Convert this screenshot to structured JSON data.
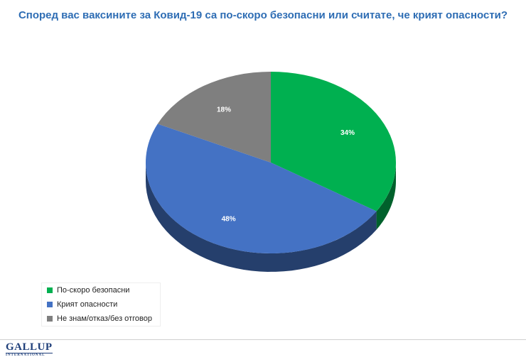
{
  "chart_data": {
    "type": "pie",
    "title": "Според вас ваксините за Ковид-19 са по-скоро безопасни или считате, че крият опасности?",
    "slices": [
      {
        "label": "По-скоро безопасни",
        "value": 34,
        "value_label": "34%",
        "color": "#00b050"
      },
      {
        "label": "Крият опасности",
        "value": 48,
        "value_label": "48%",
        "color": "#4472c4"
      },
      {
        "label": "Не знам/отказ/без отговор",
        "value": 18,
        "value_label": "18%",
        "color": "#7f7f7f"
      }
    ],
    "legend_position": "bottom-left",
    "style": "3d"
  },
  "title_color": "#2e6db4",
  "logo": {
    "main": "GALLUP",
    "sub": "INTERNATIONAL"
  }
}
